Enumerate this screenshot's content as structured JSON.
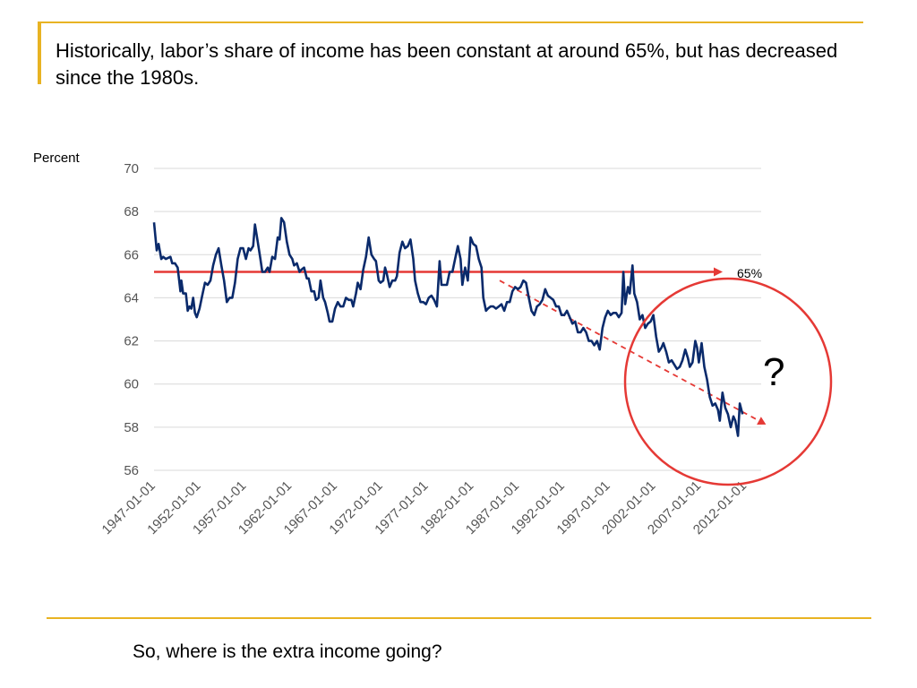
{
  "slide": {
    "title": "Historically, labor’s share of income has been constant at around 65%, but has decreased since the 1980s.",
    "footer": "So, where is the extra income going?",
    "accent_color": "#e8b323"
  },
  "chart_data": {
    "type": "line",
    "ylabel": "Percent",
    "xlabel": "",
    "ylim": [
      56,
      70
    ],
    "yticks": [
      56,
      58,
      60,
      62,
      64,
      66,
      68,
      70
    ],
    "xlim": [
      1947.0,
      2013.75
    ],
    "xticks": [
      "1947-01-01",
      "1952-01-01",
      "1957-01-01",
      "1962-01-01",
      "1967-01-01",
      "1972-01-01",
      "1977-01-01",
      "1982-01-01",
      "1987-01-01",
      "1992-01-01",
      "1997-01-01",
      "2002-01-01",
      "2007-01-01",
      "2012-01-01"
    ],
    "grid": true,
    "line_color": "#0a2a6b",
    "series": [
      {
        "values": [
          [
            1947.0,
            67.5
          ],
          [
            1947.3,
            66.2
          ],
          [
            1947.5,
            66.5
          ],
          [
            1947.8,
            65.8
          ],
          [
            1948.0,
            65.9
          ],
          [
            1948.3,
            65.8
          ],
          [
            1948.8,
            65.9
          ],
          [
            1949.0,
            65.6
          ],
          [
            1949.3,
            65.6
          ],
          [
            1949.6,
            65.4
          ],
          [
            1949.9,
            64.3
          ],
          [
            1950.0,
            64.8
          ],
          [
            1950.2,
            64.2
          ],
          [
            1950.5,
            64.2
          ],
          [
            1950.7,
            63.4
          ],
          [
            1950.9,
            63.6
          ],
          [
            1951.1,
            63.5
          ],
          [
            1951.3,
            64.0
          ],
          [
            1951.5,
            63.3
          ],
          [
            1951.7,
            63.1
          ],
          [
            1952.0,
            63.5
          ],
          [
            1952.3,
            64.1
          ],
          [
            1952.6,
            64.7
          ],
          [
            1952.9,
            64.6
          ],
          [
            1953.2,
            64.8
          ],
          [
            1953.5,
            65.5
          ],
          [
            1953.8,
            66.0
          ],
          [
            1954.1,
            66.3
          ],
          [
            1954.4,
            65.5
          ],
          [
            1954.7,
            64.8
          ],
          [
            1955.0,
            63.8
          ],
          [
            1955.3,
            64.0
          ],
          [
            1955.6,
            64.0
          ],
          [
            1955.9,
            64.7
          ],
          [
            1956.2,
            65.8
          ],
          [
            1956.5,
            66.3
          ],
          [
            1956.8,
            66.3
          ],
          [
            1957.1,
            65.8
          ],
          [
            1957.4,
            66.3
          ],
          [
            1957.6,
            66.2
          ],
          [
            1957.9,
            66.4
          ],
          [
            1958.1,
            67.4
          ],
          [
            1958.4,
            66.6
          ],
          [
            1958.7,
            65.8
          ],
          [
            1958.9,
            65.2
          ],
          [
            1959.2,
            65.2
          ],
          [
            1959.5,
            65.4
          ],
          [
            1959.7,
            65.2
          ],
          [
            1960.0,
            65.9
          ],
          [
            1960.3,
            65.8
          ],
          [
            1960.6,
            66.8
          ],
          [
            1960.8,
            66.7
          ],
          [
            1961.0,
            67.7
          ],
          [
            1961.3,
            67.5
          ],
          [
            1961.6,
            66.6
          ],
          [
            1961.9,
            66.0
          ],
          [
            1962.2,
            65.8
          ],
          [
            1962.4,
            65.5
          ],
          [
            1962.7,
            65.6
          ],
          [
            1963.0,
            65.2
          ],
          [
            1963.2,
            65.3
          ],
          [
            1963.5,
            65.4
          ],
          [
            1963.8,
            64.9
          ],
          [
            1964.0,
            64.9
          ],
          [
            1964.3,
            64.3
          ],
          [
            1964.6,
            64.3
          ],
          [
            1964.8,
            63.9
          ],
          [
            1965.1,
            64.0
          ],
          [
            1965.3,
            64.8
          ],
          [
            1965.6,
            64.0
          ],
          [
            1965.8,
            63.8
          ],
          [
            1966.1,
            63.3
          ],
          [
            1966.3,
            62.9
          ],
          [
            1966.6,
            62.9
          ],
          [
            1966.9,
            63.5
          ],
          [
            1967.2,
            63.8
          ],
          [
            1967.5,
            63.6
          ],
          [
            1967.8,
            63.6
          ],
          [
            1968.1,
            64.0
          ],
          [
            1968.4,
            63.9
          ],
          [
            1968.7,
            63.9
          ],
          [
            1968.9,
            63.6
          ],
          [
            1969.2,
            64.2
          ],
          [
            1969.4,
            64.7
          ],
          [
            1969.7,
            64.4
          ],
          [
            1970.0,
            65.3
          ],
          [
            1970.3,
            65.9
          ],
          [
            1970.6,
            66.8
          ],
          [
            1970.9,
            66.0
          ],
          [
            1971.2,
            65.8
          ],
          [
            1971.4,
            65.7
          ],
          [
            1971.7,
            64.8
          ],
          [
            1971.9,
            64.7
          ],
          [
            1972.2,
            64.8
          ],
          [
            1972.4,
            65.4
          ],
          [
            1972.6,
            65.1
          ],
          [
            1972.9,
            64.5
          ],
          [
            1973.2,
            64.8
          ],
          [
            1973.5,
            64.8
          ],
          [
            1973.7,
            65.0
          ],
          [
            1974.0,
            66.1
          ],
          [
            1974.3,
            66.6
          ],
          [
            1974.6,
            66.3
          ],
          [
            1974.9,
            66.4
          ],
          [
            1975.2,
            66.7
          ],
          [
            1975.5,
            65.8
          ],
          [
            1975.7,
            64.8
          ],
          [
            1976.0,
            64.2
          ],
          [
            1976.3,
            63.8
          ],
          [
            1976.6,
            63.8
          ],
          [
            1976.9,
            63.7
          ],
          [
            1977.2,
            64.0
          ],
          [
            1977.5,
            64.1
          ],
          [
            1977.8,
            63.9
          ],
          [
            1978.1,
            63.6
          ],
          [
            1978.4,
            65.7
          ],
          [
            1978.6,
            64.6
          ],
          [
            1978.9,
            64.6
          ],
          [
            1979.2,
            64.6
          ],
          [
            1979.5,
            65.2
          ],
          [
            1979.8,
            65.2
          ],
          [
            1980.1,
            65.8
          ],
          [
            1980.4,
            66.4
          ],
          [
            1980.7,
            65.8
          ],
          [
            1980.9,
            64.6
          ],
          [
            1981.2,
            65.4
          ],
          [
            1981.5,
            64.8
          ],
          [
            1981.8,
            66.8
          ],
          [
            1982.1,
            66.5
          ],
          [
            1982.4,
            66.4
          ],
          [
            1982.7,
            65.8
          ],
          [
            1983.0,
            65.4
          ],
          [
            1983.2,
            64.0
          ],
          [
            1983.5,
            63.4
          ],
          [
            1983.7,
            63.5
          ],
          [
            1984.0,
            63.6
          ],
          [
            1984.3,
            63.6
          ],
          [
            1984.6,
            63.5
          ],
          [
            1984.9,
            63.6
          ],
          [
            1985.2,
            63.7
          ],
          [
            1985.5,
            63.4
          ],
          [
            1985.8,
            63.8
          ],
          [
            1986.1,
            63.8
          ],
          [
            1986.4,
            64.3
          ],
          [
            1986.7,
            64.5
          ],
          [
            1987.0,
            64.4
          ],
          [
            1987.3,
            64.5
          ],
          [
            1987.6,
            64.8
          ],
          [
            1987.9,
            64.7
          ],
          [
            1988.2,
            64.0
          ],
          [
            1988.5,
            63.4
          ],
          [
            1988.8,
            63.2
          ],
          [
            1989.1,
            63.6
          ],
          [
            1989.4,
            63.7
          ],
          [
            1989.7,
            63.9
          ],
          [
            1990.0,
            64.4
          ],
          [
            1990.3,
            64.1
          ],
          [
            1990.6,
            64.0
          ],
          [
            1990.9,
            63.9
          ],
          [
            1991.2,
            63.6
          ],
          [
            1991.5,
            63.6
          ],
          [
            1991.8,
            63.2
          ],
          [
            1992.1,
            63.2
          ],
          [
            1992.4,
            63.4
          ],
          [
            1992.7,
            63.1
          ],
          [
            1993.0,
            62.8
          ],
          [
            1993.3,
            62.9
          ],
          [
            1993.6,
            62.4
          ],
          [
            1993.9,
            62.4
          ],
          [
            1994.2,
            62.6
          ],
          [
            1994.5,
            62.4
          ],
          [
            1994.8,
            62.0
          ],
          [
            1995.1,
            62.0
          ],
          [
            1995.4,
            61.8
          ],
          [
            1995.7,
            62.0
          ],
          [
            1996.0,
            61.6
          ],
          [
            1996.3,
            62.6
          ],
          [
            1996.6,
            63.1
          ],
          [
            1996.9,
            63.4
          ],
          [
            1997.2,
            63.2
          ],
          [
            1997.5,
            63.3
          ],
          [
            1997.8,
            63.3
          ],
          [
            1998.1,
            63.1
          ],
          [
            1998.4,
            63.3
          ],
          [
            1998.6,
            65.2
          ],
          [
            1998.8,
            63.7
          ],
          [
            1999.1,
            64.5
          ],
          [
            1999.3,
            64.2
          ],
          [
            1999.6,
            65.5
          ],
          [
            1999.8,
            64.2
          ],
          [
            2000.1,
            63.8
          ],
          [
            2000.4,
            63.0
          ],
          [
            2000.7,
            63.2
          ],
          [
            2001.0,
            62.6
          ],
          [
            2001.3,
            62.8
          ],
          [
            2001.6,
            62.9
          ],
          [
            2001.9,
            63.2
          ],
          [
            2002.2,
            62.2
          ],
          [
            2002.5,
            61.5
          ],
          [
            2002.8,
            61.7
          ],
          [
            2003.0,
            61.9
          ],
          [
            2003.3,
            61.5
          ],
          [
            2003.6,
            61.0
          ],
          [
            2003.9,
            61.1
          ],
          [
            2004.2,
            60.9
          ],
          [
            2004.5,
            60.7
          ],
          [
            2004.8,
            60.8
          ],
          [
            2005.1,
            61.1
          ],
          [
            2005.4,
            61.6
          ],
          [
            2005.7,
            61.2
          ],
          [
            2005.9,
            60.8
          ],
          [
            2006.2,
            61.0
          ],
          [
            2006.5,
            62.0
          ],
          [
            2006.7,
            61.7
          ],
          [
            2006.9,
            61.0
          ],
          [
            2007.2,
            61.9
          ],
          [
            2007.5,
            60.8
          ],
          [
            2007.8,
            60.2
          ],
          [
            2008.1,
            59.4
          ],
          [
            2008.4,
            59.0
          ],
          [
            2008.7,
            59.1
          ],
          [
            2009.0,
            58.8
          ],
          [
            2009.2,
            58.3
          ],
          [
            2009.5,
            59.6
          ],
          [
            2009.8,
            58.9
          ],
          [
            2010.1,
            58.6
          ],
          [
            2010.4,
            58.0
          ],
          [
            2010.7,
            58.5
          ],
          [
            2010.9,
            58.3
          ],
          [
            2011.2,
            57.6
          ],
          [
            2011.4,
            59.1
          ],
          [
            2011.7,
            58.6
          ]
        ]
      }
    ],
    "reference_line": {
      "value": 65.2,
      "label": "65%",
      "color": "#e53935"
    },
    "trend_line": {
      "from": [
        1985.0,
        64.8
      ],
      "to": [
        2013.5,
        58.3
      ],
      "color": "#e53935",
      "style": "dashed"
    },
    "highlight_circle": {
      "label": "?",
      "color": "#e53935"
    }
  }
}
